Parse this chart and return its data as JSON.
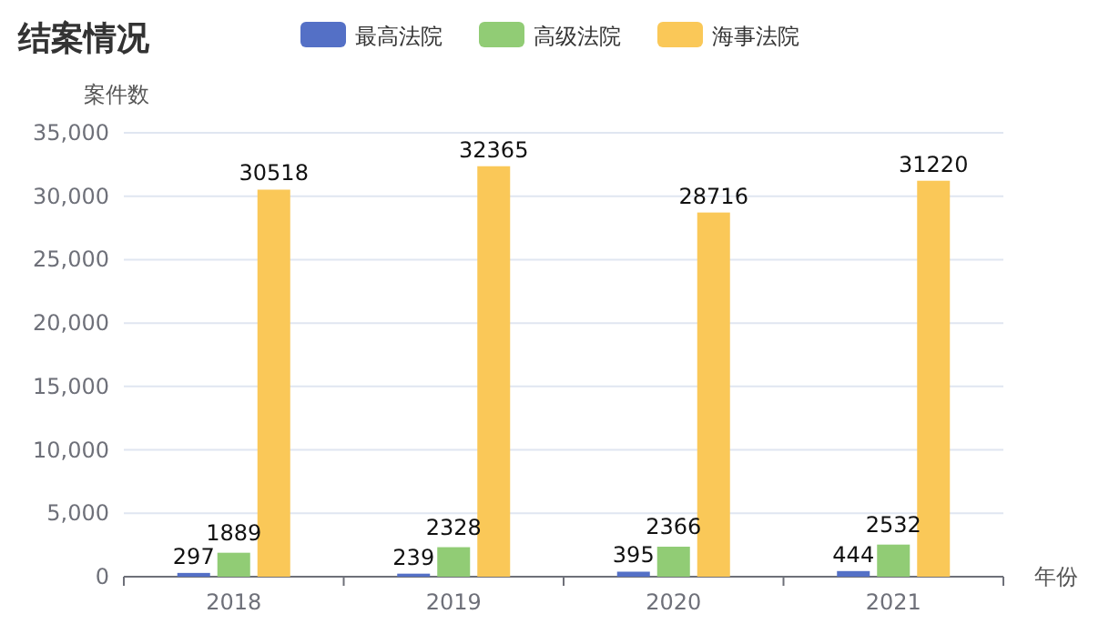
{
  "chart_data": {
    "type": "bar",
    "title": "结案情况",
    "ylabel": "案件数",
    "xlabel": "年份",
    "categories": [
      "2018",
      "2019",
      "2020",
      "2021"
    ],
    "series": [
      {
        "name": "最高法院",
        "color": "#5470c6",
        "values": [
          297,
          239,
          395,
          444
        ]
      },
      {
        "name": "高级法院",
        "color": "#91cc75",
        "values": [
          1889,
          2328,
          2366,
          2532
        ]
      },
      {
        "name": "海事法院",
        "color": "#fac858",
        "values": [
          30518,
          32365,
          28716,
          31220
        ]
      }
    ],
    "ylim": [
      0,
      35000
    ],
    "yticks": [
      {
        "value": 0,
        "label": "0"
      },
      {
        "value": 5000,
        "label": "5,000"
      },
      {
        "value": 10000,
        "label": "10,000"
      },
      {
        "value": 15000,
        "label": "15,000"
      },
      {
        "value": 20000,
        "label": "20,000"
      },
      {
        "value": 25000,
        "label": "25,000"
      },
      {
        "value": 30000,
        "label": "30,000"
      },
      {
        "value": 35000,
        "label": "35,000"
      }
    ],
    "grid": "y",
    "legend": "top",
    "data_labels": true
  }
}
